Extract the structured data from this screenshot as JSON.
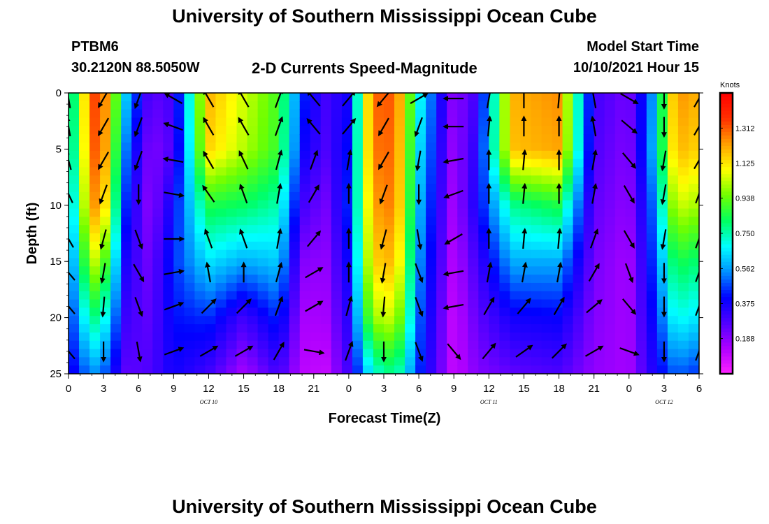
{
  "page": {
    "title_top": "University of Southern Mississippi Ocean Cube",
    "title_bottom": "University of Southern Mississippi Ocean Cube",
    "station": "PTBM6",
    "location": "30.2120N  88.5050W",
    "subtitle": "2-D Currents Speed-Magnitude",
    "model_start_label": "Model Start Time",
    "model_start_value": "10/10/2021 Hour 15"
  },
  "chart_data": {
    "type": "heatmap",
    "xlabel": "Forecast Time(Z)",
    "ylabel": "Depth (ft)",
    "x_ticks": [
      "0",
      "3",
      "6",
      "9",
      "12",
      "15",
      "18",
      "21",
      "0",
      "3",
      "6",
      "9",
      "12",
      "15",
      "18",
      "21",
      "0",
      "3",
      "6"
    ],
    "x_range_hours": [
      0,
      54
    ],
    "y_ticks": [
      "0",
      "5",
      "10",
      "15",
      "20",
      "25"
    ],
    "ylim": [
      0,
      25
    ],
    "date_labels": [
      {
        "text": "OCT  10",
        "hour": 12
      },
      {
        "text": "OCT  11",
        "hour": 36
      },
      {
        "text": "OCT  12",
        "hour": 51
      }
    ],
    "colorbar": {
      "unit": "Knots",
      "ticks": [
        "1.312",
        "1.125",
        "0.938",
        "0.750",
        "0.562",
        "0.375",
        "0.188"
      ],
      "tick_values": [
        1.312,
        1.125,
        0.938,
        0.75,
        0.562,
        0.375,
        0.188
      ],
      "range": [
        0,
        1.5
      ],
      "colors": [
        "#ff22ff",
        "#b000ff",
        "#5000ff",
        "#0000ff",
        "#0090ff",
        "#00ffff",
        "#00ff60",
        "#70ff00",
        "#ffff00",
        "#ffa000",
        "#ff3000",
        "#ff0000"
      ]
    },
    "columns": [
      {
        "hour": 0,
        "speeds": [
          0.65,
          0.62,
          0.55,
          0.48,
          0.42,
          0.36
        ]
      },
      {
        "hour": 2,
        "speeds": [
          1.35,
          1.32,
          1.25,
          1.05,
          0.8,
          0.55
        ]
      },
      {
        "hour": 3,
        "speeds": [
          1.3,
          1.28,
          1.18,
          0.95,
          0.72,
          0.5
        ]
      },
      {
        "hour": 5,
        "speeds": [
          0.6,
          0.5,
          0.42,
          0.35,
          0.3,
          0.25
        ]
      },
      {
        "hour": 7,
        "speeds": [
          0.25,
          0.2,
          0.18,
          0.22,
          0.25,
          0.28
        ]
      },
      {
        "hour": 9,
        "speeds": [
          0.3,
          0.28,
          0.4,
          0.45,
          0.42,
          0.38
        ]
      },
      {
        "hour": 12,
        "speeds": [
          1.2,
          1.15,
          0.85,
          0.65,
          0.45,
          0.3
        ]
      },
      {
        "hour": 15,
        "speeds": [
          1.05,
          1.02,
          0.82,
          0.58,
          0.3,
          0.15
        ]
      },
      {
        "hour": 18,
        "speeds": [
          0.9,
          0.88,
          0.75,
          0.62,
          0.45,
          0.3
        ]
      },
      {
        "hour": 20,
        "speeds": [
          0.45,
          0.4,
          0.3,
          0.2,
          0.15,
          0.12
        ]
      },
      {
        "hour": 22,
        "speeds": [
          0.3,
          0.28,
          0.22,
          0.18,
          0.15,
          0.1
        ]
      },
      {
        "hour": 24,
        "speeds": [
          0.38,
          0.42,
          0.45,
          0.4,
          0.35,
          0.3
        ]
      },
      {
        "hour": 26,
        "speeds": [
          1.3,
          1.28,
          1.22,
          1.15,
          1.0,
          0.7
        ]
      },
      {
        "hour": 28,
        "speeds": [
          1.32,
          1.3,
          1.28,
          1.2,
          1.05,
          0.8
        ]
      },
      {
        "hour": 30,
        "speeds": [
          0.7,
          0.65,
          0.6,
          0.55,
          0.5,
          0.45
        ]
      },
      {
        "hour": 33,
        "speeds": [
          0.18,
          0.16,
          0.14,
          0.12,
          0.1,
          0.1
        ]
      },
      {
        "hour": 35,
        "speeds": [
          0.3,
          0.35,
          0.38,
          0.3,
          0.25,
          0.2
        ]
      },
      {
        "hour": 38,
        "speeds": [
          1.2,
          1.18,
          0.78,
          0.58,
          0.38,
          0.25
        ]
      },
      {
        "hour": 42,
        "speeds": [
          1.25,
          1.22,
          0.85,
          0.58,
          0.4,
          0.28
        ]
      },
      {
        "hour": 45,
        "speeds": [
          0.3,
          0.28,
          0.25,
          0.22,
          0.2,
          0.18
        ]
      },
      {
        "hour": 48,
        "speeds": [
          0.22,
          0.2,
          0.18,
          0.15,
          0.15,
          0.15
        ]
      },
      {
        "hour": 50,
        "speeds": [
          0.55,
          0.58,
          0.5,
          0.45,
          0.4,
          0.35
        ]
      },
      {
        "hour": 52,
        "speeds": [
          1.25,
          1.2,
          1.05,
          0.85,
          0.7,
          0.5
        ]
      },
      {
        "hour": 54,
        "speeds": [
          1.2,
          1.15,
          1.0,
          0.8,
          0.65,
          0.45
        ]
      }
    ],
    "vector_depths": [
      0.5,
      3,
      6,
      9,
      13,
      16,
      19,
      23
    ],
    "vectors": [
      {
        "hour": 0,
        "dirs": [
          350,
          350,
          345,
          335,
          330,
          320,
          320,
          320
        ]
      },
      {
        "hour": 3,
        "dirs": [
          210,
          210,
          210,
          200,
          195,
          190,
          185,
          180
        ]
      },
      {
        "hour": 6,
        "dirs": [
          200,
          200,
          200,
          180,
          160,
          150,
          160,
          170
        ]
      },
      {
        "hour": 9,
        "dirs": [
          300,
          290,
          280,
          100,
          90,
          80,
          70,
          70
        ]
      },
      {
        "hour": 12,
        "dirs": [
          330,
          330,
          330,
          325,
          340,
          350,
          45,
          60
        ]
      },
      {
        "hour": 15,
        "dirs": [
          330,
          330,
          335,
          340,
          340,
          0,
          45,
          60
        ]
      },
      {
        "hour": 18,
        "dirs": [
          20,
          20,
          15,
          10,
          10,
          15,
          20,
          30
        ]
      },
      {
        "hour": 21,
        "dirs": [
          320,
          320,
          20,
          30,
          40,
          60,
          60,
          100
        ]
      },
      {
        "hour": 24,
        "dirs": [
          40,
          40,
          10,
          0,
          0,
          0,
          15,
          20
        ]
      },
      {
        "hour": 27,
        "dirs": [
          220,
          210,
          210,
          200,
          195,
          190,
          185,
          180
        ]
      },
      {
        "hour": 30,
        "dirs": [
          60,
          200,
          190,
          180,
          170,
          160,
          160,
          160
        ]
      },
      {
        "hour": 33,
        "dirs": [
          270,
          270,
          260,
          250,
          240,
          260,
          260,
          140
        ]
      },
      {
        "hour": 36,
        "dirs": [
          10,
          5,
          0,
          0,
          0,
          10,
          30,
          40
        ]
      },
      {
        "hour": 39,
        "dirs": [
          0,
          0,
          5,
          5,
          5,
          10,
          40,
          55
        ]
      },
      {
        "hour": 42,
        "dirs": [
          5,
          0,
          0,
          0,
          5,
          10,
          30,
          45
        ]
      },
      {
        "hour": 45,
        "dirs": [
          350,
          350,
          10,
          10,
          20,
          30,
          50,
          60
        ]
      },
      {
        "hour": 48,
        "dirs": [
          120,
          130,
          140,
          150,
          150,
          160,
          140,
          110
        ]
      },
      {
        "hour": 51,
        "dirs": [
          180,
          180,
          190,
          190,
          190,
          180,
          180,
          180
        ]
      },
      {
        "hour": 54,
        "dirs": [
          30,
          30,
          30,
          20,
          20,
          20,
          20,
          20
        ]
      }
    ]
  }
}
